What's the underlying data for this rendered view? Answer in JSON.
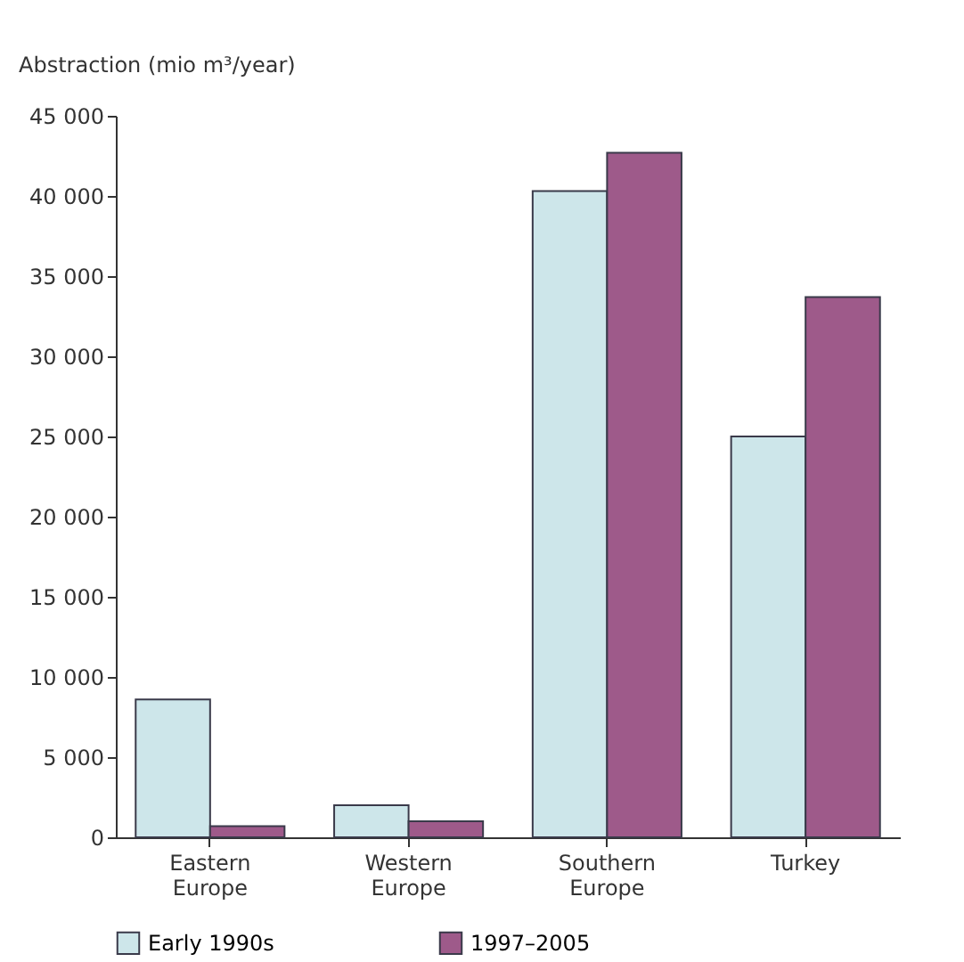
{
  "chart_data": {
    "type": "bar",
    "ylabel": "Abstraction (mio m³/year)",
    "categories": [
      "Eastern Europe",
      "Western Europe",
      "Southern Europe",
      "Turkey"
    ],
    "series": [
      {
        "name": "Early 1990s",
        "color": "#cde6ea",
        "values": [
          8600,
          2000,
          40300,
          25000
        ]
      },
      {
        "name": "1997–2005",
        "color": "#9e5a8a",
        "values": [
          700,
          1000,
          42700,
          33700
        ]
      }
    ],
    "ylim": [
      0,
      45000
    ],
    "yticks": [
      0,
      {
        "value": 5000,
        "label": "5 000"
      },
      {
        "value": 10000,
        "label": "10 000"
      },
      {
        "value": 15000,
        "label": "15 000"
      },
      {
        "value": 20000,
        "label": "20 000"
      },
      {
        "value": 25000,
        "label": "25 000"
      },
      {
        "value": 30000,
        "label": "30 000"
      },
      {
        "value": 35000,
        "label": "35 000"
      },
      {
        "value": 40000,
        "label": "40 000"
      },
      {
        "value": 45000,
        "label": "45 000"
      }
    ],
    "grid": false,
    "legend": "bottom"
  }
}
